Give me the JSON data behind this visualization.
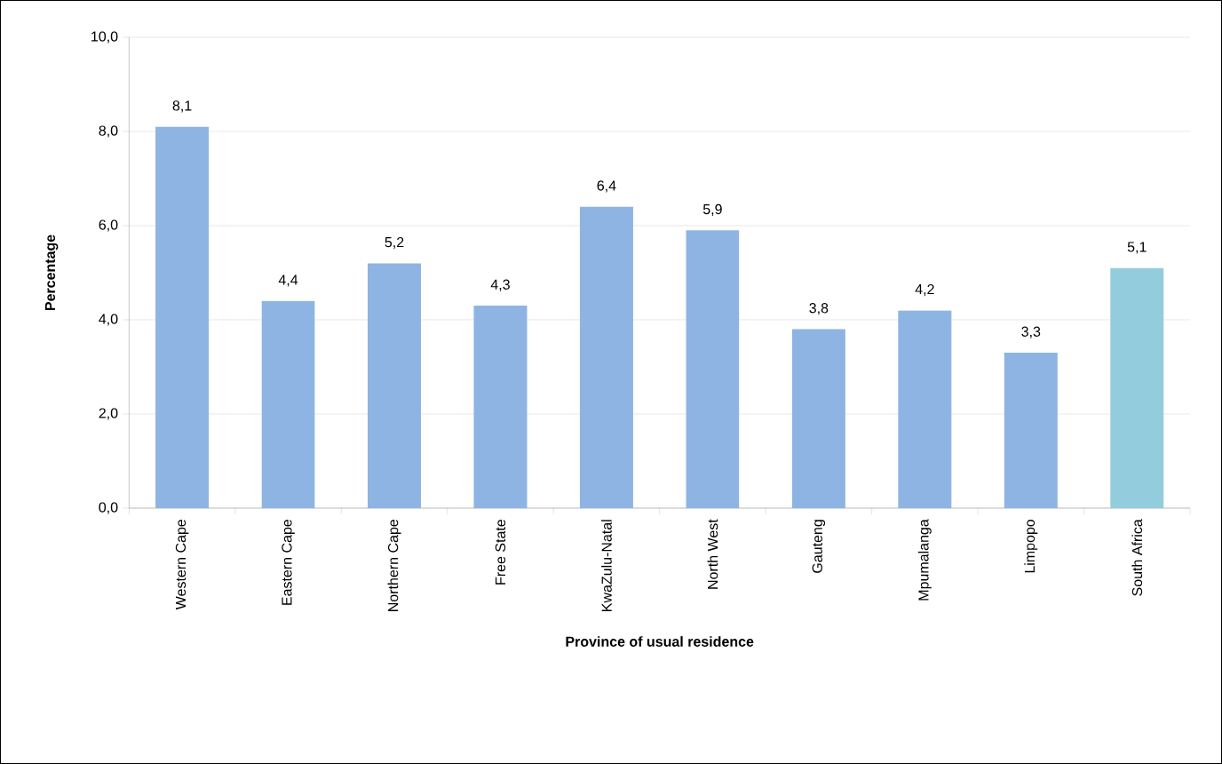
{
  "chart_data": {
    "type": "bar",
    "xlabel": "Province of usual residence",
    "ylabel": "Percentage",
    "categories": [
      "Western Cape",
      "Eastern Cape",
      "Northern Cape",
      "Free State",
      "KwaZulu-Natal",
      "North West",
      "Gauteng",
      "Mpumalanga",
      "Limpopo",
      "South Africa"
    ],
    "values": [
      8.1,
      4.4,
      5.2,
      4.3,
      6.4,
      5.9,
      3.8,
      4.2,
      3.3,
      5.1
    ],
    "colors": [
      "#8eb4e3",
      "#8eb4e3",
      "#8eb4e3",
      "#8eb4e3",
      "#8eb4e3",
      "#8eb4e3",
      "#8eb4e3",
      "#8eb4e3",
      "#8eb4e3",
      "#93cddd"
    ],
    "value_labels": [
      "8,1",
      "4,4",
      "5,2",
      "4,3",
      "6,4",
      "5,9",
      "3,8",
      "4,2",
      "3,3",
      "5,1"
    ],
    "ylim": [
      0,
      10
    ],
    "yticks": [
      {
        "value": 0,
        "label": "0,0"
      },
      {
        "value": 2,
        "label": "2,0"
      },
      {
        "value": 4,
        "label": "4,0"
      },
      {
        "value": 6,
        "label": "6,0"
      },
      {
        "value": 8,
        "label": "8,0"
      },
      {
        "value": 10,
        "label": "10,0"
      }
    ],
    "grid": "y"
  }
}
